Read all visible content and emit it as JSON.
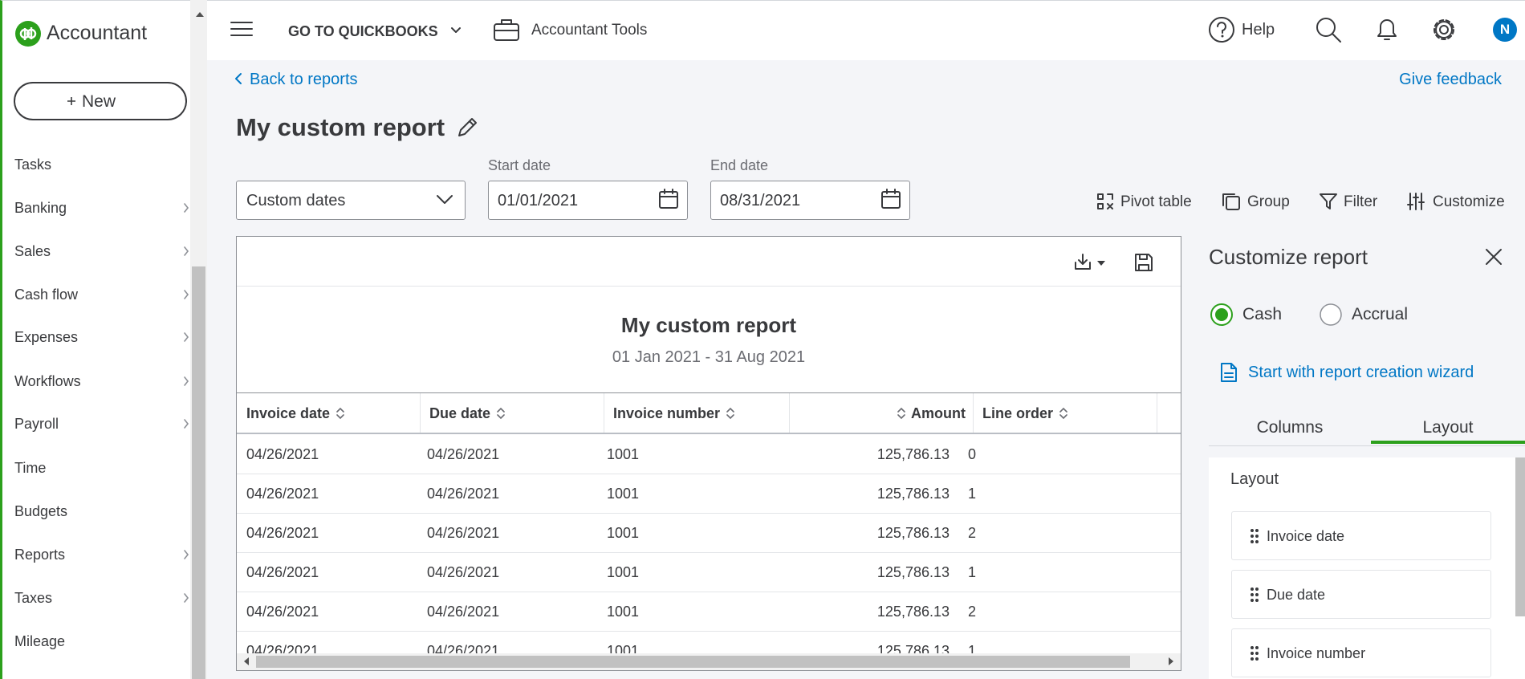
{
  "sidebar": {
    "brand": "Accountant",
    "new_button": "New",
    "nav": [
      "Tasks",
      "Banking",
      "Sales",
      "Cash flow",
      "Expenses",
      "Workflows",
      "Payroll",
      "Time",
      "Budgets",
      "Reports",
      "Taxes",
      "Mileage"
    ]
  },
  "topbar": {
    "go_to": "GO TO QUICKBOOKS",
    "tools": "Accountant Tools",
    "help": "Help",
    "avatar": "N"
  },
  "header": {
    "back": "Back to reports",
    "feedback": "Give feedback",
    "title": "My custom report"
  },
  "filters": {
    "period": "Custom dates",
    "start_label": "Start date",
    "start": "01/01/2021",
    "end_label": "End date",
    "end": "08/31/2021"
  },
  "actions": [
    "Pivot table",
    "Group",
    "Filter",
    "Customize"
  ],
  "report": {
    "title": "My custom report",
    "range": "01 Jan 2021 - 31 Aug 2021",
    "columns": [
      "Invoice date",
      "Due date",
      "Invoice number",
      "Amount",
      "Line order"
    ],
    "rows": [
      [
        "04/26/2021",
        "04/26/2021",
        "1001",
        "125,786.13",
        "0"
      ],
      [
        "04/26/2021",
        "04/26/2021",
        "1001",
        "125,786.13",
        "1"
      ],
      [
        "04/26/2021",
        "04/26/2021",
        "1001",
        "125,786.13",
        "2"
      ],
      [
        "04/26/2021",
        "04/26/2021",
        "1001",
        "125,786.13",
        "1"
      ],
      [
        "04/26/2021",
        "04/26/2021",
        "1001",
        "125,786.13",
        "2"
      ],
      [
        "04/26/2021",
        "04/26/2021",
        "1001",
        "125,786.13",
        "1"
      ]
    ]
  },
  "panel": {
    "title": "Customize report",
    "basis": [
      "Cash",
      "Accrual"
    ],
    "wizard": "Start with report creation wizard",
    "tabs": [
      "Columns",
      "Layout"
    ],
    "section": "Layout",
    "items": [
      "Invoice date",
      "Due date",
      "Invoice number"
    ]
  }
}
